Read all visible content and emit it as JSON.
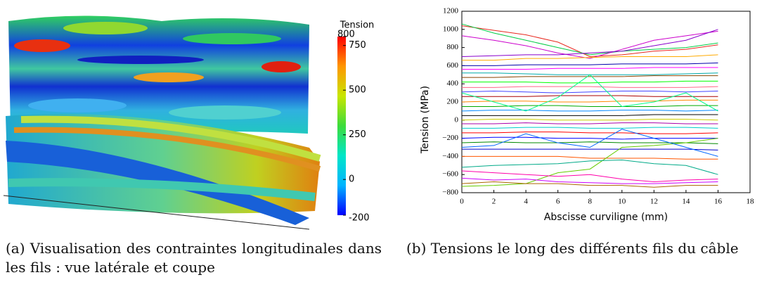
{
  "figure_a": {
    "colorbar": {
      "title": "Tension",
      "lim": [
        -200,
        800
      ],
      "ticks": [
        {
          "value": -200,
          "label": "-200"
        },
        0,
        250,
        500,
        750,
        800
      ],
      "colormap": [
        "#0000ff",
        "#00b4ff",
        "#00e6c8",
        "#3cdc3c",
        "#c8e600",
        "#ff9600",
        "#ff0000"
      ]
    }
  },
  "chart_data": {
    "type": "line",
    "xlabel": "Abscisse curviligne (mm)",
    "ylabel": "Tension (MPa)",
    "x": [
      0,
      2,
      4,
      6,
      8,
      10,
      12,
      14,
      16
    ],
    "xlim": [
      0,
      18
    ],
    "xticks": [
      0,
      2,
      4,
      6,
      8,
      10,
      12,
      14,
      16,
      18
    ],
    "ylim": [
      -800,
      1200
    ],
    "yticks": [
      {
        "value": -800,
        "label": "−800"
      },
      {
        "value": -600,
        "label": "−600"
      },
      {
        "value": -400,
        "label": "−400"
      },
      {
        "value": -200,
        "label": "−200"
      },
      0,
      200,
      400,
      600,
      800,
      1000,
      1200
    ],
    "series": [
      {
        "color": "#e8281e",
        "values": [
          1040,
          990,
          940,
          860,
          700,
          720,
          760,
          780,
          830
        ]
      },
      {
        "color": "#00cc44",
        "values": [
          1060,
          960,
          880,
          800,
          720,
          760,
          780,
          800,
          850
        ]
      },
      {
        "color": "#cc00cc",
        "values": [
          930,
          880,
          820,
          740,
          680,
          780,
          880,
          930,
          980
        ]
      },
      {
        "color": "#8800cc",
        "values": [
          700,
          710,
          720,
          720,
          740,
          760,
          820,
          880,
          1000
        ]
      },
      {
        "color": "#ffaa00",
        "values": [
          660,
          660,
          680,
          680,
          690,
          700,
          700,
          700,
          720
        ]
      },
      {
        "color": "#0000aa",
        "values": [
          600,
          600,
          610,
          610,
          610,
          620,
          620,
          620,
          630
        ]
      },
      {
        "color": "#ff00ff",
        "values": [
          560,
          560,
          560,
          570,
          570,
          570,
          580,
          580,
          580
        ]
      },
      {
        "color": "#00aaaa",
        "values": [
          520,
          520,
          510,
          500,
          500,
          500,
          500,
          510,
          520
        ]
      },
      {
        "color": "#884400",
        "values": [
          470,
          470,
          480,
          480,
          480,
          480,
          490,
          490,
          490
        ]
      },
      {
        "color": "#00ff00",
        "values": [
          420,
          420,
          420,
          410,
          410,
          420,
          420,
          430,
          430
        ]
      },
      {
        "color": "#ff6688",
        "values": [
          360,
          360,
          370,
          370,
          370,
          360,
          360,
          360,
          370
        ]
      },
      {
        "color": "#4444ff",
        "values": [
          310,
          320,
          310,
          300,
          310,
          320,
          320,
          310,
          320
        ]
      },
      {
        "color": "#aa0000",
        "values": [
          260,
          260,
          260,
          270,
          270,
          270,
          260,
          260,
          260
        ]
      },
      {
        "color": "#ff8800",
        "values": [
          200,
          210,
          210,
          200,
          200,
          210,
          210,
          220,
          220
        ]
      },
      {
        "color": "#00aa00",
        "values": [
          150,
          150,
          160,
          160,
          150,
          150,
          150,
          160,
          160
        ]
      },
      {
        "color": "#0088ff",
        "values": [
          100,
          110,
          110,
          100,
          100,
          110,
          110,
          100,
          110
        ]
      },
      {
        "color": "#000000",
        "values": [
          50,
          50,
          50,
          50,
          50,
          50,
          60,
          60,
          60
        ]
      },
      {
        "color": "#cccc00",
        "values": [
          0,
          10,
          10,
          0,
          0,
          0,
          10,
          10,
          0
        ]
      },
      {
        "color": "#aa00aa",
        "values": [
          -40,
          -40,
          -30,
          -40,
          -40,
          -30,
          -30,
          -40,
          -40
        ]
      },
      {
        "color": "#00cccc",
        "values": [
          -90,
          -90,
          -80,
          -80,
          -90,
          -90,
          -80,
          -80,
          -90
        ]
      },
      {
        "color": "#ff0000",
        "values": [
          -140,
          -140,
          -130,
          -130,
          -140,
          -140,
          -150,
          -150,
          -140
        ]
      },
      {
        "color": "#0000ff",
        "values": [
          -200,
          -190,
          -190,
          -200,
          -200,
          -210,
          -200,
          -200,
          -200
        ]
      },
      {
        "color": "#008800",
        "values": [
          -250,
          -240,
          -250,
          -250,
          -240,
          -250,
          -250,
          -250,
          -260
        ]
      },
      {
        "color": "#0000cc",
        "values": [
          -320,
          -320,
          -320,
          -320,
          -320,
          -320,
          -320,
          -320,
          -330
        ]
      },
      {
        "color": "#ff5500",
        "values": [
          -400,
          -400,
          -400,
          -400,
          -420,
          -420,
          -420,
          -430,
          -430
        ]
      },
      {
        "color": "#66cc00",
        "values": [
          -730,
          -720,
          -700,
          -580,
          -540,
          -300,
          -280,
          -250,
          -200
        ]
      },
      {
        "color": "#00aa88",
        "values": [
          -520,
          -500,
          -490,
          -480,
          -450,
          -440,
          -480,
          -500,
          -600
        ]
      },
      {
        "color": "#cc00ff",
        "values": [
          -640,
          -660,
          -650,
          -680,
          -690,
          -700,
          -700,
          -690,
          -680
        ]
      },
      {
        "color": "#ff00aa",
        "values": [
          -560,
          -580,
          -600,
          -620,
          -600,
          -650,
          -680,
          -660,
          -650
        ]
      },
      {
        "color": "#aa6600",
        "values": [
          -700,
          -680,
          -700,
          -700,
          -720,
          -720,
          -740,
          -720,
          -720
        ]
      },
      {
        "color": "#0066ff",
        "values": [
          -300,
          -280,
          -150,
          -250,
          -300,
          -100,
          -200,
          -300,
          -400
        ]
      },
      {
        "color": "#00ff88",
        "values": [
          300,
          200,
          100,
          250,
          500,
          150,
          200,
          300,
          100
        ]
      }
    ]
  },
  "captions": [
    {
      "label": "(a)",
      "text": "Visualisation des contraintes longitudinales dans les fils : vue latérale et coupe"
    },
    {
      "label": "(b)",
      "text": "Tensions le long des différents fils du câble"
    }
  ]
}
